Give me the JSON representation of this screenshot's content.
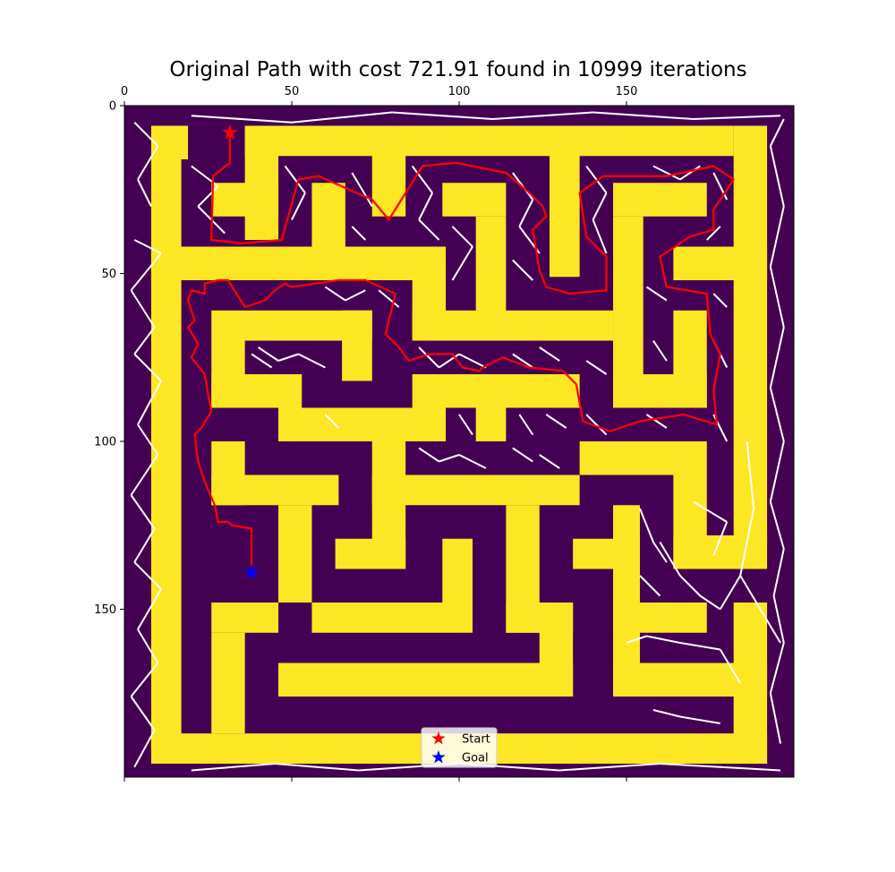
{
  "chart_data": {
    "type": "scatter",
    "title": "Original Path with cost 721.91 found in 10999 iterations",
    "xlabel": "",
    "ylabel": "",
    "xlim": [
      0,
      200
    ],
    "ylim": [
      200,
      0
    ],
    "x_ticks": [
      0,
      50,
      100,
      150
    ],
    "y_ticks": [
      0,
      50,
      100,
      150
    ],
    "x_axis_position": "top",
    "y_axis_inverted": true,
    "grid": false,
    "colors": {
      "wall": "#fde725",
      "free": "#440154",
      "tree": "#ffffff",
      "path": "#ff0000",
      "start": "#ff0000",
      "goal": "#0000ff"
    },
    "maze_walls": [
      [
        8,
        6,
        19,
        16
      ],
      [
        8,
        16,
        17,
        192
      ],
      [
        8,
        187,
        192,
        196
      ],
      [
        182,
        6,
        192,
        130
      ],
      [
        8,
        42,
        96,
        52
      ],
      [
        36,
        6,
        46,
        40
      ],
      [
        26,
        23,
        46,
        33
      ],
      [
        56,
        23,
        66,
        42
      ],
      [
        74,
        6,
        84,
        33
      ],
      [
        36,
        6,
        182,
        15
      ],
      [
        127,
        6,
        136,
        51
      ],
      [
        95,
        23,
        114,
        33
      ],
      [
        105,
        33,
        114,
        62
      ],
      [
        86,
        46,
        96,
        69
      ],
      [
        86,
        61,
        146,
        70
      ],
      [
        26,
        61,
        74,
        70
      ],
      [
        26,
        70,
        36,
        90
      ],
      [
        26,
        80,
        53,
        90
      ],
      [
        65,
        61,
        74,
        82
      ],
      [
        46,
        90,
        96,
        100
      ],
      [
        86,
        80,
        136,
        90
      ],
      [
        105,
        90,
        114,
        100
      ],
      [
        146,
        23,
        174,
        33
      ],
      [
        146,
        33,
        155,
        90
      ],
      [
        146,
        80,
        174,
        90
      ],
      [
        164,
        61,
        174,
        90
      ],
      [
        164,
        42,
        192,
        52
      ],
      [
        136,
        100,
        174,
        110
      ],
      [
        164,
        110,
        174,
        138
      ],
      [
        164,
        128,
        192,
        138
      ],
      [
        26,
        100,
        36,
        119
      ],
      [
        26,
        110,
        64,
        119
      ],
      [
        46,
        119,
        56,
        148
      ],
      [
        74,
        100,
        84,
        138
      ],
      [
        74,
        110,
        136,
        119
      ],
      [
        63,
        129,
        84,
        138
      ],
      [
        95,
        129,
        104,
        148
      ],
      [
        56,
        148,
        104,
        157
      ],
      [
        114,
        119,
        124,
        157
      ],
      [
        114,
        148,
        134,
        157
      ],
      [
        124,
        148,
        134,
        176
      ],
      [
        46,
        166,
        134,
        176
      ],
      [
        26,
        148,
        46,
        157
      ],
      [
        26,
        157,
        36,
        187
      ],
      [
        134,
        129,
        154,
        138
      ],
      [
        146,
        119,
        154,
        176
      ],
      [
        146,
        148,
        174,
        157
      ],
      [
        146,
        166,
        192,
        176
      ],
      [
        182,
        148,
        192,
        196
      ]
    ],
    "tree_edges": [
      [
        3,
        5,
        10,
        12
      ],
      [
        10,
        12,
        4,
        22
      ],
      [
        4,
        22,
        8,
        30
      ],
      [
        3,
        40,
        11,
        44
      ],
      [
        11,
        44,
        2,
        55
      ],
      [
        2,
        55,
        9,
        66
      ],
      [
        9,
        66,
        3,
        74
      ],
      [
        3,
        74,
        11,
        82
      ],
      [
        11,
        82,
        4,
        95
      ],
      [
        4,
        95,
        10,
        104
      ],
      [
        10,
        104,
        2,
        116
      ],
      [
        2,
        116,
        9,
        126
      ],
      [
        9,
        126,
        3,
        136
      ],
      [
        3,
        136,
        11,
        144
      ],
      [
        11,
        144,
        4,
        156
      ],
      [
        4,
        156,
        10,
        166
      ],
      [
        10,
        166,
        2,
        176
      ],
      [
        2,
        176,
        9,
        186
      ],
      [
        9,
        186,
        3,
        197
      ],
      [
        20,
        198,
        45,
        196
      ],
      [
        45,
        196,
        70,
        198
      ],
      [
        70,
        198,
        100,
        196
      ],
      [
        100,
        196,
        130,
        198
      ],
      [
        130,
        198,
        160,
        196
      ],
      [
        160,
        196,
        196,
        198
      ],
      [
        196,
        190,
        193,
        175
      ],
      [
        193,
        175,
        197,
        160
      ],
      [
        197,
        160,
        194,
        146
      ],
      [
        194,
        146,
        197,
        132
      ],
      [
        197,
        132,
        193,
        118
      ],
      [
        193,
        118,
        197,
        100
      ],
      [
        197,
        100,
        193,
        84
      ],
      [
        193,
        84,
        197,
        66
      ],
      [
        197,
        66,
        193,
        48
      ],
      [
        193,
        48,
        197,
        30
      ],
      [
        197,
        30,
        193,
        12
      ],
      [
        193,
        12,
        197,
        4
      ],
      [
        20,
        3,
        50,
        5
      ],
      [
        50,
        5,
        80,
        2
      ],
      [
        80,
        2,
        110,
        4
      ],
      [
        110,
        4,
        140,
        2
      ],
      [
        140,
        2,
        170,
        4
      ],
      [
        170,
        4,
        196,
        3
      ],
      [
        20,
        18,
        28,
        24
      ],
      [
        28,
        24,
        22,
        30
      ],
      [
        22,
        30,
        30,
        38
      ],
      [
        48,
        18,
        54,
        26
      ],
      [
        54,
        26,
        50,
        34
      ],
      [
        68,
        20,
        74,
        30
      ],
      [
        86,
        18,
        92,
        26
      ],
      [
        92,
        26,
        88,
        34
      ],
      [
        88,
        34,
        94,
        40
      ],
      [
        116,
        20,
        122,
        28
      ],
      [
        122,
        28,
        118,
        36
      ],
      [
        118,
        36,
        124,
        44
      ],
      [
        138,
        18,
        144,
        26
      ],
      [
        144,
        26,
        140,
        34
      ],
      [
        140,
        34,
        144,
        44
      ],
      [
        158,
        18,
        166,
        22
      ],
      [
        166,
        22,
        172,
        18
      ],
      [
        176,
        20,
        180,
        28
      ],
      [
        178,
        36,
        174,
        40
      ],
      [
        68,
        36,
        72,
        40
      ],
      [
        40,
        72,
        46,
        76
      ],
      [
        46,
        76,
        52,
        74
      ],
      [
        52,
        74,
        60,
        78
      ],
      [
        38,
        74,
        44,
        78
      ],
      [
        98,
        36,
        104,
        42
      ],
      [
        104,
        42,
        98,
        52
      ],
      [
        116,
        46,
        122,
        52
      ],
      [
        60,
        54,
        66,
        58
      ],
      [
        66,
        58,
        72,
        55
      ],
      [
        76,
        55,
        82,
        60
      ],
      [
        88,
        72,
        94,
        78
      ],
      [
        94,
        78,
        100,
        74
      ],
      [
        100,
        74,
        108,
        78
      ],
      [
        116,
        74,
        122,
        78
      ],
      [
        124,
        72,
        130,
        76
      ],
      [
        138,
        76,
        144,
        80
      ],
      [
        156,
        54,
        162,
        58
      ],
      [
        158,
        70,
        162,
        76
      ],
      [
        176,
        56,
        180,
        60
      ],
      [
        176,
        70,
        180,
        78
      ],
      [
        176,
        92,
        180,
        100
      ],
      [
        60,
        92,
        64,
        96
      ],
      [
        100,
        92,
        104,
        98
      ],
      [
        118,
        92,
        122,
        98
      ],
      [
        126,
        92,
        132,
        96
      ],
      [
        138,
        92,
        144,
        98
      ],
      [
        156,
        92,
        162,
        96
      ],
      [
        88,
        102,
        94,
        106
      ],
      [
        94,
        106,
        100,
        104
      ],
      [
        100,
        104,
        108,
        108
      ],
      [
        116,
        102,
        122,
        106
      ],
      [
        124,
        104,
        130,
        108
      ],
      [
        170,
        118,
        180,
        124
      ],
      [
        180,
        124,
        176,
        134
      ],
      [
        186,
        100,
        188,
        120
      ],
      [
        188,
        120,
        184,
        140
      ],
      [
        184,
        140,
        190,
        150
      ],
      [
        190,
        150,
        196,
        160
      ],
      [
        160,
        130,
        166,
        140
      ],
      [
        166,
        140,
        172,
        146
      ],
      [
        172,
        146,
        178,
        150
      ],
      [
        178,
        150,
        184,
        140
      ],
      [
        154,
        140,
        160,
        146
      ],
      [
        150,
        160,
        156,
        158
      ],
      [
        156,
        158,
        166,
        160
      ],
      [
        166,
        160,
        178,
        162
      ],
      [
        178,
        162,
        184,
        172
      ],
      [
        154,
        120,
        158,
        130
      ],
      [
        158,
        130,
        162,
        136
      ],
      [
        158,
        180,
        166,
        182
      ],
      [
        166,
        182,
        178,
        184
      ]
    ],
    "path": [
      [
        31.5,
        8
      ],
      [
        31.5,
        17
      ],
      [
        26.5,
        21
      ],
      [
        26,
        40
      ],
      [
        35,
        41
      ],
      [
        47,
        40
      ],
      [
        52,
        22
      ],
      [
        58,
        21
      ],
      [
        74,
        28
      ],
      [
        79,
        34
      ],
      [
        89,
        18
      ],
      [
        99,
        17
      ],
      [
        114,
        20
      ],
      [
        121,
        26
      ],
      [
        125,
        30
      ],
      [
        126,
        33
      ],
      [
        122,
        37
      ],
      [
        124,
        49
      ],
      [
        126,
        54
      ],
      [
        133,
        56
      ],
      [
        144,
        55
      ],
      [
        144,
        45
      ],
      [
        138,
        39
      ],
      [
        136,
        26
      ],
      [
        143,
        21
      ],
      [
        162,
        21
      ],
      [
        176,
        18
      ],
      [
        182,
        22
      ],
      [
        176,
        31
      ],
      [
        176,
        37
      ],
      [
        169,
        39
      ],
      [
        160,
        45
      ],
      [
        162,
        54
      ],
      [
        174,
        56
      ],
      [
        175,
        68
      ],
      [
        178,
        74
      ],
      [
        176,
        85
      ],
      [
        177,
        95
      ],
      [
        167,
        92
      ],
      [
        154,
        94
      ],
      [
        145,
        97
      ],
      [
        137,
        94
      ],
      [
        135,
        83
      ],
      [
        131,
        79
      ],
      [
        121,
        78
      ],
      [
        113,
        75
      ],
      [
        107,
        78
      ],
      [
        106,
        79
      ],
      [
        101,
        78
      ],
      [
        98,
        74
      ],
      [
        91,
        74
      ],
      [
        85,
        76
      ],
      [
        82,
        72
      ],
      [
        78,
        68
      ],
      [
        81,
        56
      ],
      [
        72,
        52
      ],
      [
        64,
        52
      ],
      [
        50,
        54
      ],
      [
        48,
        53
      ],
      [
        45,
        55
      ],
      [
        42,
        58
      ],
      [
        36,
        60
      ],
      [
        31,
        52
      ],
      [
        28,
        52
      ],
      [
        24,
        53
      ],
      [
        24,
        56
      ],
      [
        20,
        55
      ],
      [
        19,
        58
      ],
      [
        21,
        64
      ],
      [
        19,
        66
      ],
      [
        22,
        71
      ],
      [
        20,
        75
      ],
      [
        24,
        80
      ],
      [
        25,
        86
      ],
      [
        26,
        91
      ],
      [
        23,
        96
      ],
      [
        21,
        98
      ],
      [
        22,
        106
      ],
      [
        24,
        112
      ],
      [
        27,
        119
      ],
      [
        28,
        124
      ],
      [
        31,
        124
      ],
      [
        32,
        125
      ],
      [
        38,
        126
      ],
      [
        38,
        138
      ]
    ],
    "start": [
      31.5,
      8
    ],
    "goal": [
      38,
      139
    ],
    "legend": {
      "position": "bottom-center",
      "entries": [
        {
          "label": "Start",
          "marker": "star",
          "color": "#ff0000"
        },
        {
          "label": "Goal",
          "marker": "star",
          "color": "#0000ff"
        }
      ]
    }
  }
}
